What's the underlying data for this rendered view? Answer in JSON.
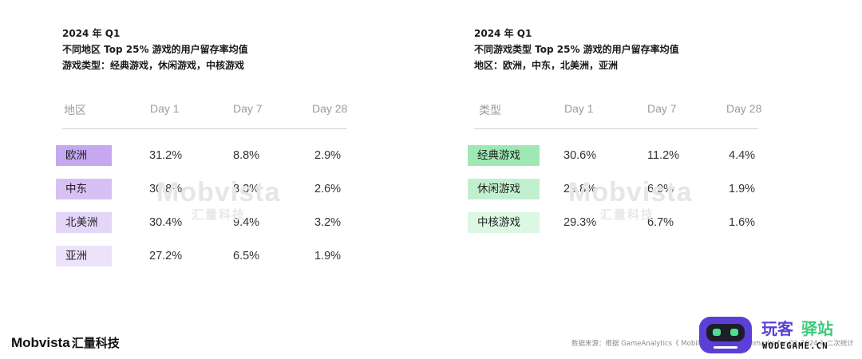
{
  "left": {
    "header": {
      "line1": "2024 年 Q1",
      "line2": "不同地区 Top 25% 游戏的用户留存率均值",
      "line3": "游戏类型：经典游戏，休闲游戏，中核游戏"
    },
    "columns": [
      "地区",
      "Day 1",
      "Day 7",
      "Day 28"
    ],
    "rows": [
      {
        "label": "欧洲",
        "d1": "31.2%",
        "d7": "8.8%",
        "d28": "2.9%",
        "color": "#c5a8ef"
      },
      {
        "label": "中东",
        "d1": "30.8%",
        "d7": "8.3%",
        "d28": "2.6%",
        "color": "#d6c0f4"
      },
      {
        "label": "北美洲",
        "d1": "30.4%",
        "d7": "9.4%",
        "d28": "3.2%",
        "color": "#e4d6f8"
      },
      {
        "label": "亚洲",
        "d1": "27.2%",
        "d7": "6.5%",
        "d28": "1.9%",
        "color": "#ece2fa"
      }
    ]
  },
  "right": {
    "header": {
      "line1": "2024 年 Q1",
      "line2": "不同游戏类型 Top 25% 游戏的用户留存率均值",
      "line3": "地区：欧洲，中东，北美洲，亚洲"
    },
    "columns": [
      "类型",
      "Day 1",
      "Day 7",
      "Day 28"
    ],
    "rows": [
      {
        "label": "经典游戏",
        "d1": "30.6%",
        "d7": "11.2%",
        "d28": "4.4%",
        "color": "#9ee8b4"
      },
      {
        "label": "休闲游戏",
        "d1": "29.8%",
        "d7": "6.9%",
        "d28": "1.9%",
        "color": "#c2f0cf"
      },
      {
        "label": "中核游戏",
        "d1": "29.3%",
        "d7": "6.7%",
        "d28": "1.6%",
        "color": "#dcf7e4"
      }
    ]
  },
  "watermark": {
    "en": "Mobvista",
    "cn": "汇量科技"
  },
  "brand": {
    "en": "Mobvista",
    "cn": "汇量科技"
  },
  "source": "数据来源：根据 GameAnalytics《 Mobile gaming benchmarks for Q1 2024 》二次统计",
  "site_logo": {
    "cn_a": "玩客",
    "cn_b": "驿站",
    "en": "WODEGAME.CN"
  },
  "colors": {
    "purple": "#5b3fd6",
    "green": "#3cc97a"
  }
}
